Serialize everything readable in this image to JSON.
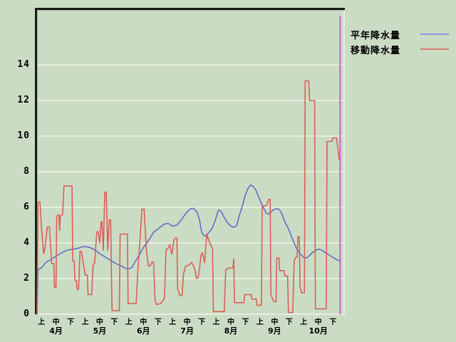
{
  "window": {
    "background_color": "#cbdcc5",
    "frame_color": "#1a1a1a",
    "gridline_color": "#eef4e8"
  },
  "legend": {
    "items": [
      {
        "label": "平年降水量",
        "sample_color": "#8a97dd"
      },
      {
        "label": "移動降水量",
        "sample_color": "#dd7d73"
      }
    ]
  },
  "chart_data": {
    "type": "line",
    "title": "",
    "xlabel": "",
    "ylabel": "",
    "x_unit": "day (April 1 = 0, 10-day periods 上/中/下 per month)",
    "y_axis": {
      "tick_values": [
        0,
        2,
        4,
        6,
        8,
        10,
        12,
        14
      ],
      "range": [
        0,
        17.2
      ],
      "gridline_step": 2
    },
    "x_axis": {
      "ticks": [
        {
          "day": 3,
          "label": "上"
        },
        {
          "day": 13,
          "label": "中"
        },
        {
          "day": 23,
          "label": "下"
        },
        {
          "day": 33,
          "label": "上"
        },
        {
          "day": 43,
          "label": "中"
        },
        {
          "day": 53,
          "label": "下"
        },
        {
          "day": 63,
          "label": "上"
        },
        {
          "day": 73,
          "label": "中"
        },
        {
          "day": 83,
          "label": "下"
        },
        {
          "day": 93,
          "label": "上"
        },
        {
          "day": 103,
          "label": "中"
        },
        {
          "day": 113,
          "label": "下"
        },
        {
          "day": 123,
          "label": "上"
        },
        {
          "day": 133,
          "label": "中"
        },
        {
          "day": 143,
          "label": "下"
        },
        {
          "day": 153,
          "label": "上"
        },
        {
          "day": 163,
          "label": "中"
        },
        {
          "day": 173,
          "label": "下"
        },
        {
          "day": 183,
          "label": "上"
        },
        {
          "day": 193,
          "label": "中"
        },
        {
          "day": 203,
          "label": "下"
        }
      ],
      "months": [
        {
          "day": 13,
          "label": "4月"
        },
        {
          "day": 43,
          "label": "5月"
        },
        {
          "day": 73,
          "label": "6月"
        },
        {
          "day": 103,
          "label": "7月"
        },
        {
          "day": 133,
          "label": "8月"
        },
        {
          "day": 163,
          "label": "9月"
        },
        {
          "day": 193,
          "label": "10月"
        }
      ]
    },
    "marker": {
      "day": 208,
      "color": "#cb5ed8",
      "meaning": "current-date-line"
    },
    "legend_position": "top-right-outside",
    "grid": true,
    "series": [
      {
        "name": "平年降水量",
        "color": "#5f6ec6",
        "points": [
          [
            0,
            0
          ],
          [
            0.7,
            2.5
          ],
          [
            3,
            2.6
          ],
          [
            6,
            2.9
          ],
          [
            10,
            3.1
          ],
          [
            14,
            3.3
          ],
          [
            18,
            3.5
          ],
          [
            21,
            3.6
          ],
          [
            25,
            3.65
          ],
          [
            28,
            3.7
          ],
          [
            31,
            3.78
          ],
          [
            33,
            3.8
          ],
          [
            36,
            3.75
          ],
          [
            40,
            3.6
          ],
          [
            43,
            3.4
          ],
          [
            47,
            3.2
          ],
          [
            50,
            3.05
          ],
          [
            54,
            2.85
          ],
          [
            58,
            2.7
          ],
          [
            61,
            2.57
          ],
          [
            63,
            2.55
          ],
          [
            65,
            2.62
          ],
          [
            67,
            2.9
          ],
          [
            70,
            3.3
          ],
          [
            73,
            3.75
          ],
          [
            77,
            4.2
          ],
          [
            80,
            4.6
          ],
          [
            84,
            4.85
          ],
          [
            87,
            5.05
          ],
          [
            90,
            5.1
          ],
          [
            93,
            4.95
          ],
          [
            96,
            5.0
          ],
          [
            99,
            5.3
          ],
          [
            102,
            5.65
          ],
          [
            105,
            5.9
          ],
          [
            106.5,
            5.95
          ],
          [
            108,
            5.9
          ],
          [
            110,
            5.7
          ],
          [
            111.5,
            5.3
          ],
          [
            113,
            4.6
          ],
          [
            114.5,
            4.4
          ],
          [
            116,
            4.42
          ],
          [
            118,
            4.6
          ],
          [
            120,
            4.8
          ],
          [
            122,
            5.2
          ],
          [
            124.5,
            5.85
          ],
          [
            126,
            5.8
          ],
          [
            128,
            5.5
          ],
          [
            130.5,
            5.15
          ],
          [
            133,
            4.95
          ],
          [
            135,
            4.88
          ],
          [
            137,
            4.98
          ],
          [
            139,
            5.6
          ],
          [
            141,
            6.1
          ],
          [
            143,
            6.7
          ],
          [
            145,
            7.1
          ],
          [
            146.5,
            7.25
          ],
          [
            148,
            7.2
          ],
          [
            150,
            7.0
          ],
          [
            153,
            6.4
          ],
          [
            155,
            6.05
          ],
          [
            157,
            5.7
          ],
          [
            158.5,
            5.62
          ],
          [
            160,
            5.7
          ],
          [
            162,
            5.85
          ],
          [
            164,
            5.92
          ],
          [
            166,
            5.9
          ],
          [
            168,
            5.65
          ],
          [
            170,
            5.2
          ],
          [
            172,
            4.9
          ],
          [
            175,
            4.3
          ],
          [
            178,
            3.7
          ],
          [
            180.5,
            3.4
          ],
          [
            183,
            3.18
          ],
          [
            185,
            3.15
          ],
          [
            187,
            3.3
          ],
          [
            189.5,
            3.5
          ],
          [
            192,
            3.62
          ],
          [
            193.5,
            3.65
          ],
          [
            195.5,
            3.6
          ],
          [
            198,
            3.45
          ],
          [
            201,
            3.3
          ],
          [
            204,
            3.15
          ],
          [
            206,
            3.05
          ],
          [
            208,
            3.0
          ]
        ]
      },
      {
        "name": "移動降水量",
        "color": "#da5f55",
        "points": [
          [
            0,
            0
          ],
          [
            0.7,
            6.3
          ],
          [
            2,
            6.3
          ],
          [
            3,
            4.9
          ],
          [
            4.5,
            3.4
          ],
          [
            5.5,
            3.7
          ],
          [
            7,
            4.9
          ],
          [
            8.5,
            4.9
          ],
          [
            9.5,
            3.6
          ],
          [
            10,
            2.85
          ],
          [
            11.5,
            2.85
          ],
          [
            12,
            1.5
          ],
          [
            13,
            1.5
          ],
          [
            13.5,
            5.5
          ],
          [
            15,
            5.6
          ],
          [
            15.5,
            4.7
          ],
          [
            16,
            5.5
          ],
          [
            17.5,
            5.6
          ],
          [
            18.5,
            7.2
          ],
          [
            24,
            7.2
          ],
          [
            24.5,
            3.0
          ],
          [
            25.5,
            3.0
          ],
          [
            26,
            1.9
          ],
          [
            27,
            1.9
          ],
          [
            27.5,
            1.4
          ],
          [
            28.5,
            1.4
          ],
          [
            29.5,
            3.55
          ],
          [
            30.5,
            3.5
          ],
          [
            31.5,
            3.0
          ],
          [
            33,
            2.2
          ],
          [
            34.5,
            2.2
          ],
          [
            35,
            1.1
          ],
          [
            37.5,
            1.1
          ],
          [
            38.5,
            2.8
          ],
          [
            39.5,
            2.85
          ],
          [
            41,
            4.6
          ],
          [
            42,
            4.65
          ],
          [
            43,
            4.0
          ],
          [
            44,
            5.2
          ],
          [
            44.5,
            5.2
          ],
          [
            45.5,
            3.6
          ],
          [
            46.5,
            6.85
          ],
          [
            47.5,
            6.85
          ],
          [
            48.5,
            3.6
          ],
          [
            49.5,
            5.3
          ],
          [
            50.5,
            5.3
          ],
          [
            51,
            2.5
          ],
          [
            51.5,
            0.2
          ],
          [
            56.5,
            0.2
          ],
          [
            57,
            4.5
          ],
          [
            62,
            4.5
          ],
          [
            62.5,
            0.6
          ],
          [
            68,
            0.6
          ],
          [
            69,
            2.2
          ],
          [
            70.5,
            4.0
          ],
          [
            72,
            5.9
          ],
          [
            73.5,
            5.9
          ],
          [
            75,
            3.64
          ],
          [
            76.5,
            2.7
          ],
          [
            78,
            2.75
          ],
          [
            79,
            2.95
          ],
          [
            80,
            2.9
          ],
          [
            81,
            0.78
          ],
          [
            82,
            0.55
          ],
          [
            85,
            0.6
          ],
          [
            87.5,
            0.9
          ],
          [
            88.5,
            3.64
          ],
          [
            89.5,
            3.65
          ],
          [
            91,
            3.9
          ],
          [
            92.5,
            3.36
          ],
          [
            94,
            4.2
          ],
          [
            95.5,
            4.3
          ],
          [
            96,
            4.25
          ],
          [
            96.5,
            1.44
          ],
          [
            98,
            1.05
          ],
          [
            99.5,
            1.05
          ],
          [
            100.5,
            2.25
          ],
          [
            102,
            2.7
          ],
          [
            104,
            2.75
          ],
          [
            106,
            2.9
          ],
          [
            108,
            2.6
          ],
          [
            109.5,
            2.0
          ],
          [
            110.5,
            2.05
          ],
          [
            111.5,
            2.55
          ],
          [
            112.5,
            3.3
          ],
          [
            113.5,
            3.45
          ],
          [
            115,
            2.9
          ],
          [
            116.5,
            4.5
          ],
          [
            118,
            4.1
          ],
          [
            119.5,
            3.85
          ],
          [
            120.5,
            3.64
          ],
          [
            121,
            0.15
          ],
          [
            128.5,
            0.15
          ],
          [
            129.5,
            2.5
          ],
          [
            132,
            2.6
          ],
          [
            134.5,
            2.6
          ],
          [
            135,
            3.1
          ],
          [
            135.5,
            0.65
          ],
          [
            142,
            0.65
          ],
          [
            142.5,
            1.1
          ],
          [
            147,
            1.1
          ],
          [
            147.5,
            0.85
          ],
          [
            150.5,
            0.85
          ],
          [
            151,
            0.5
          ],
          [
            154,
            0.5
          ],
          [
            154.5,
            6.05
          ],
          [
            157.5,
            6.1
          ],
          [
            159,
            6.45
          ],
          [
            160,
            6.45
          ],
          [
            160.5,
            1.1
          ],
          [
            162.5,
            0.7
          ],
          [
            164,
            0.7
          ],
          [
            164.5,
            3.15
          ],
          [
            166,
            3.15
          ],
          [
            166.5,
            2.45
          ],
          [
            169.5,
            2.45
          ],
          [
            170,
            2.15
          ],
          [
            172,
            2.15
          ],
          [
            172.5,
            0.1
          ],
          [
            175.5,
            0.1
          ],
          [
            176.5,
            3.0
          ],
          [
            177.5,
            3.2
          ],
          [
            178.5,
            3.2
          ],
          [
            179,
            4.35
          ],
          [
            180,
            4.35
          ],
          [
            180.5,
            1.55
          ],
          [
            181.5,
            1.2
          ],
          [
            183.5,
            1.2
          ],
          [
            184,
            13.1
          ],
          [
            186.5,
            13.1
          ],
          [
            187,
            12.0
          ],
          [
            190.5,
            12.0
          ],
          [
            191,
            0.3
          ],
          [
            198.5,
            0.3
          ],
          [
            199,
            9.7
          ],
          [
            202.5,
            9.7
          ],
          [
            203,
            9.9
          ],
          [
            205.5,
            9.9
          ],
          [
            206.5,
            9.3
          ],
          [
            207.3,
            8.7
          ]
        ]
      }
    ]
  }
}
